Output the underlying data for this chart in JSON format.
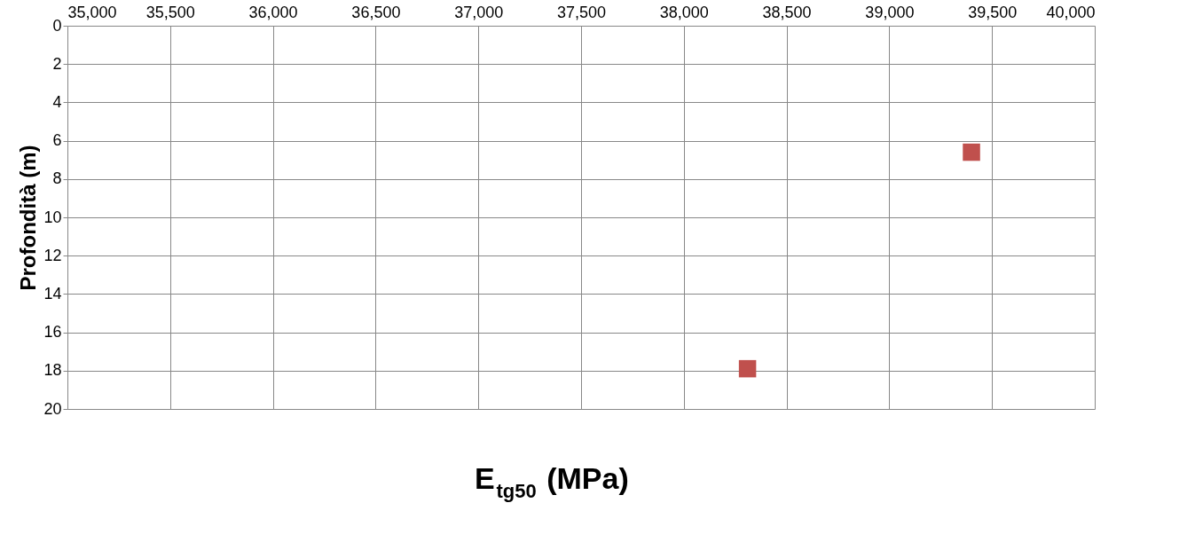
{
  "chart_data": {
    "type": "scatter",
    "xlabel": "E$_{tg50}$ (MPa)",
    "ylabel": "Profondità (m)",
    "x": [
      39400,
      38310
    ],
    "series": [
      {
        "color": "#c0504d",
        "values": [
          6.6,
          17.9
        ]
      }
    ],
    "xlim": [
      35000,
      40000
    ],
    "xticks": [
      {
        "value": 35000,
        "label": "35,000"
      },
      {
        "value": 35500,
        "label": "35,500"
      },
      {
        "value": 36000,
        "label": "36,000"
      },
      {
        "value": 36500,
        "label": "36,500"
      },
      {
        "value": 37000,
        "label": "37,000"
      },
      {
        "value": 37500,
        "label": "37,500"
      },
      {
        "value": 38000,
        "label": "38,000"
      },
      {
        "value": 38500,
        "label": "38,500"
      },
      {
        "value": 39000,
        "label": "39,000"
      },
      {
        "value": 39500,
        "label": "39,500"
      },
      {
        "value": 40000,
        "label": "40,000"
      }
    ],
    "ylim": [
      20,
      0
    ],
    "yticks": [
      0,
      2,
      4,
      6,
      8,
      10,
      12,
      14,
      16,
      18,
      20
    ],
    "grid": true,
    "marker": "square"
  }
}
